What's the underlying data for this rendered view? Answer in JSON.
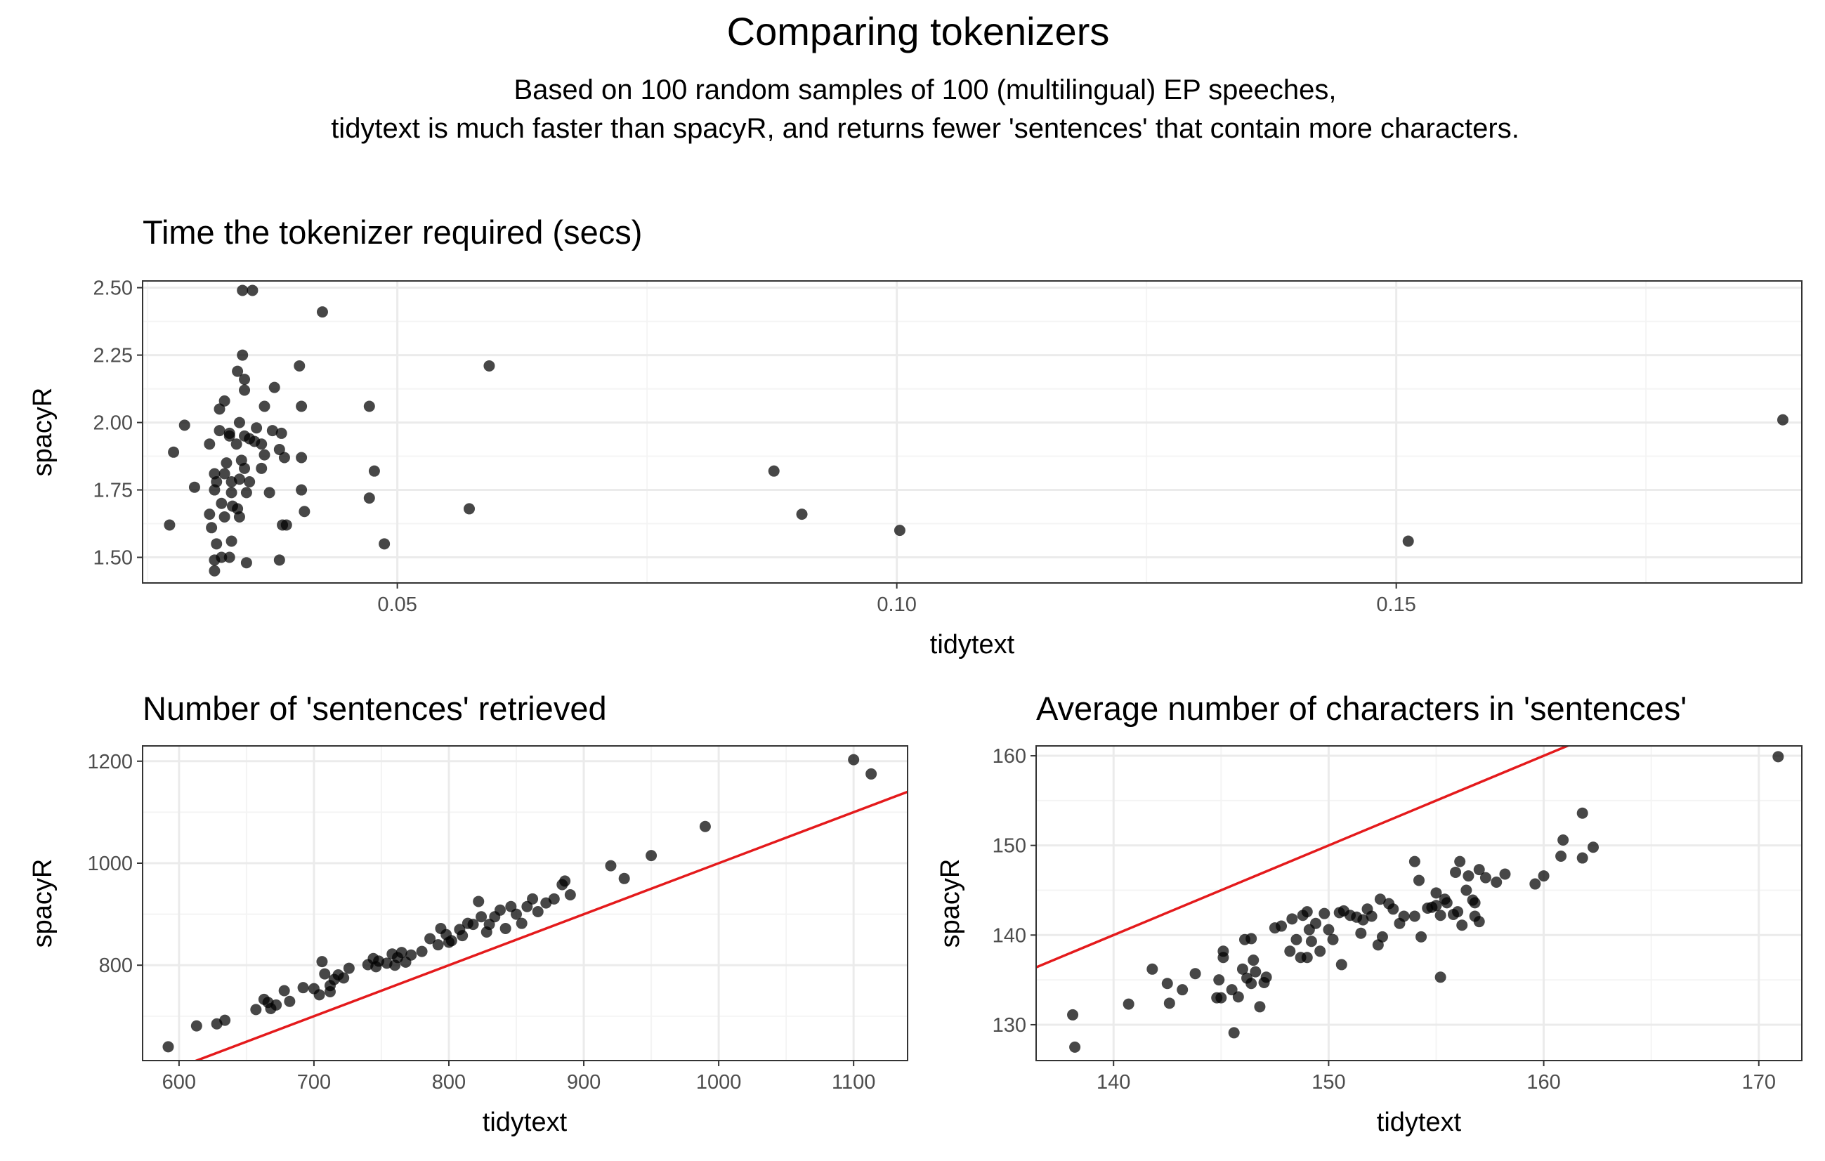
{
  "figure": {
    "title": "Comparing tokenizers",
    "subtitle_line1": "Based on 100 random samples of 100 (multilingual) EP speeches,",
    "subtitle_line2": "tidytext is much faster than spacyR, and returns fewer 'sentences' that contain more characters."
  },
  "colors": {
    "points": "#000000",
    "reference_line": "#e41a1c",
    "grid_major": "#ebebeb",
    "grid_minor": "#f4f4f4",
    "panel_border": "#333333"
  },
  "chart_data": [
    {
      "type": "scatter",
      "title": "Time the tokenizer required (secs)",
      "xlabel": "tidytext",
      "ylabel": "spacyR",
      "xlim": [
        0.0245,
        0.1906
      ],
      "ylim": [
        1.405,
        2.525
      ],
      "xticks": [
        0.05,
        0.1,
        0.15
      ],
      "xtick_labels": [
        "0.05",
        "0.10",
        "0.15"
      ],
      "yticks": [
        1.5,
        1.75,
        2.0,
        2.25,
        2.5
      ],
      "ytick_labels": [
        "1.50",
        "1.75",
        "2.00",
        "2.25",
        "2.50"
      ],
      "reference_line": null,
      "points": [
        [
          0.0355,
          2.49
        ],
        [
          0.0345,
          2.49
        ],
        [
          0.0425,
          2.41
        ],
        [
          0.0592,
          2.21
        ],
        [
          0.0402,
          2.21
        ],
        [
          0.0345,
          2.25
        ],
        [
          0.034,
          2.19
        ],
        [
          0.0347,
          2.16
        ],
        [
          0.0347,
          2.12
        ],
        [
          0.0327,
          2.08
        ],
        [
          0.0377,
          2.13
        ],
        [
          0.0367,
          2.06
        ],
        [
          0.0322,
          2.05
        ],
        [
          0.0287,
          1.99
        ],
        [
          0.0342,
          2.0
        ],
        [
          0.0359,
          1.98
        ],
        [
          0.0322,
          1.97
        ],
        [
          0.0332,
          1.96
        ],
        [
          0.0375,
          1.97
        ],
        [
          0.0384,
          1.96
        ],
        [
          0.0404,
          2.06
        ],
        [
          0.0472,
          2.06
        ],
        [
          0.0332,
          1.95
        ],
        [
          0.0347,
          1.95
        ],
        [
          0.0352,
          1.94
        ],
        [
          0.0312,
          1.92
        ],
        [
          0.0339,
          1.92
        ],
        [
          0.0357,
          1.93
        ],
        [
          0.0364,
          1.92
        ],
        [
          0.0382,
          1.9
        ],
        [
          0.0276,
          1.89
        ],
        [
          0.0367,
          1.88
        ],
        [
          0.0344,
          1.86
        ],
        [
          0.0329,
          1.85
        ],
        [
          0.0404,
          1.87
        ],
        [
          0.0387,
          1.87
        ],
        [
          0.0364,
          1.83
        ],
        [
          0.0347,
          1.83
        ],
        [
          0.0327,
          1.81
        ],
        [
          0.0317,
          1.81
        ],
        [
          0.0342,
          1.79
        ],
        [
          0.0352,
          1.78
        ],
        [
          0.0334,
          1.78
        ],
        [
          0.0319,
          1.78
        ],
        [
          0.0297,
          1.76
        ],
        [
          0.0317,
          1.75
        ],
        [
          0.0334,
          1.74
        ],
        [
          0.0349,
          1.74
        ],
        [
          0.0372,
          1.74
        ],
        [
          0.0404,
          1.75
        ],
        [
          0.0477,
          1.82
        ],
        [
          0.0472,
          1.72
        ],
        [
          0.0324,
          1.7
        ],
        [
          0.0335,
          1.69
        ],
        [
          0.034,
          1.68
        ],
        [
          0.0312,
          1.66
        ],
        [
          0.0327,
          1.65
        ],
        [
          0.0342,
          1.65
        ],
        [
          0.0407,
          1.67
        ],
        [
          0.0272,
          1.62
        ],
        [
          0.0314,
          1.61
        ],
        [
          0.0385,
          1.62
        ],
        [
          0.0389,
          1.62
        ],
        [
          0.0319,
          1.55
        ],
        [
          0.0334,
          1.56
        ],
        [
          0.0332,
          1.5
        ],
        [
          0.0317,
          1.49
        ],
        [
          0.0324,
          1.5
        ],
        [
          0.0349,
          1.48
        ],
        [
          0.0382,
          1.49
        ],
        [
          0.0317,
          1.45
        ],
        [
          0.0487,
          1.55
        ],
        [
          0.0572,
          1.68
        ],
        [
          0.0877,
          1.82
        ],
        [
          0.0905,
          1.66
        ],
        [
          0.1003,
          1.6
        ],
        [
          0.1512,
          1.56
        ],
        [
          0.1887,
          2.01
        ]
      ]
    },
    {
      "type": "scatter",
      "title": "Number of 'sentences' retrieved",
      "xlabel": "tidytext",
      "ylabel": "spacyR",
      "xlim": [
        573,
        1140
      ],
      "ylim": [
        613,
        1230
      ],
      "xticks": [
        600,
        700,
        800,
        900,
        1000,
        1100
      ],
      "xtick_labels": [
        "600",
        "700",
        "800",
        "900",
        "1000",
        "1100"
      ],
      "yticks": [
        800,
        1000,
        1200
      ],
      "ytick_labels": [
        "800",
        "1000",
        "1200"
      ],
      "reference_line": {
        "slope": 1,
        "intercept": 0
      },
      "points": [
        [
          592,
          640
        ],
        [
          613,
          681
        ],
        [
          628,
          685
        ],
        [
          634,
          692
        ],
        [
          657,
          713
        ],
        [
          663,
          733
        ],
        [
          666,
          727
        ],
        [
          668,
          715
        ],
        [
          672,
          722
        ],
        [
          678,
          750
        ],
        [
          682,
          729
        ],
        [
          692,
          756
        ],
        [
          700,
          754
        ],
        [
          704,
          742
        ],
        [
          706,
          807
        ],
        [
          708,
          783
        ],
        [
          712,
          748
        ],
        [
          712,
          760
        ],
        [
          715,
          772
        ],
        [
          718,
          781
        ],
        [
          722,
          775
        ],
        [
          726,
          794
        ],
        [
          740,
          801
        ],
        [
          744,
          813
        ],
        [
          746,
          797
        ],
        [
          748,
          808
        ],
        [
          754,
          804
        ],
        [
          758,
          822
        ],
        [
          760,
          800
        ],
        [
          762,
          815
        ],
        [
          765,
          825
        ],
        [
          768,
          806
        ],
        [
          772,
          820
        ],
        [
          780,
          827
        ],
        [
          786,
          852
        ],
        [
          792,
          840
        ],
        [
          794,
          872
        ],
        [
          798,
          860
        ],
        [
          800,
          845
        ],
        [
          802,
          848
        ],
        [
          808,
          870
        ],
        [
          810,
          858
        ],
        [
          814,
          882
        ],
        [
          818,
          880
        ],
        [
          822,
          925
        ],
        [
          824,
          895
        ],
        [
          828,
          865
        ],
        [
          830,
          880
        ],
        [
          834,
          895
        ],
        [
          838,
          908
        ],
        [
          842,
          872
        ],
        [
          846,
          915
        ],
        [
          850,
          900
        ],
        [
          854,
          882
        ],
        [
          858,
          915
        ],
        [
          862,
          930
        ],
        [
          866,
          905
        ],
        [
          872,
          922
        ],
        [
          878,
          930
        ],
        [
          884,
          958
        ],
        [
          886,
          965
        ],
        [
          890,
          938
        ],
        [
          920,
          995
        ],
        [
          930,
          970
        ],
        [
          950,
          1015
        ],
        [
          990,
          1072
        ],
        [
          1100,
          1203
        ],
        [
          1113,
          1175
        ]
      ]
    },
    {
      "type": "scatter",
      "title": "Average number of characters in 'sentences'",
      "xlabel": "tidytext",
      "ylabel": "spacyR",
      "xlim": [
        136.4,
        172.0
      ],
      "ylim": [
        126.0,
        161.1
      ],
      "xticks": [
        140,
        150,
        160,
        170
      ],
      "xtick_labels": [
        "140",
        "150",
        "160",
        "170"
      ],
      "yticks": [
        130,
        140,
        150,
        160
      ],
      "ytick_labels": [
        "130",
        "140",
        "150",
        "160"
      ],
      "reference_line": {
        "slope": 1,
        "intercept": 0
      },
      "points": [
        [
          138.1,
          131.1
        ],
        [
          138.2,
          127.5
        ],
        [
          140.7,
          132.3
        ],
        [
          141.8,
          136.2
        ],
        [
          142.5,
          134.6
        ],
        [
          142.6,
          132.4
        ],
        [
          143.2,
          133.9
        ],
        [
          143.8,
          135.7
        ],
        [
          144.8,
          133
        ],
        [
          144.9,
          135
        ],
        [
          145,
          133
        ],
        [
          145.1,
          137.5
        ],
        [
          145.1,
          138.2
        ],
        [
          145.5,
          133.9
        ],
        [
          145.6,
          129.1
        ],
        [
          145.8,
          133.1
        ],
        [
          146,
          136.2
        ],
        [
          146.1,
          139.5
        ],
        [
          146.2,
          135.2
        ],
        [
          146.4,
          134.6
        ],
        [
          146.4,
          139.6
        ],
        [
          146.5,
          137.2
        ],
        [
          146.6,
          135.9
        ],
        [
          146.8,
          132
        ],
        [
          147,
          134.7
        ],
        [
          147.1,
          135.3
        ],
        [
          147.5,
          140.8
        ],
        [
          147.8,
          141
        ],
        [
          148.2,
          138.2
        ],
        [
          148.3,
          141.8
        ],
        [
          148.5,
          139.5
        ],
        [
          148.7,
          137.5
        ],
        [
          148.8,
          142.2
        ],
        [
          149,
          137.5
        ],
        [
          149,
          142.6
        ],
        [
          149.1,
          140.6
        ],
        [
          149.2,
          139.3
        ],
        [
          149.4,
          141.3
        ],
        [
          149.6,
          138.2
        ],
        [
          149.8,
          142.4
        ],
        [
          150,
          140.6
        ],
        [
          150.2,
          139.5
        ],
        [
          150.5,
          142.5
        ],
        [
          150.6,
          136.7
        ],
        [
          150.7,
          142.7
        ],
        [
          151,
          142.2
        ],
        [
          151.3,
          142
        ],
        [
          151.5,
          140.2
        ],
        [
          151.6,
          141.7
        ],
        [
          151.8,
          142.9
        ],
        [
          152,
          142.1
        ],
        [
          152.3,
          138.9
        ],
        [
          152.4,
          144
        ],
        [
          152.5,
          139.8
        ],
        [
          152.8,
          143.5
        ],
        [
          153,
          142.9
        ],
        [
          153.3,
          141.3
        ],
        [
          153.5,
          142.1
        ],
        [
          154,
          142.1
        ],
        [
          154,
          148.2
        ],
        [
          154.2,
          146.1
        ],
        [
          154.3,
          139.8
        ],
        [
          154.6,
          143
        ],
        [
          154.8,
          143.1
        ],
        [
          155,
          143.3
        ],
        [
          155,
          144.7
        ],
        [
          155.2,
          135.3
        ],
        [
          155.2,
          142.2
        ],
        [
          155.4,
          144
        ],
        [
          155.5,
          143.6
        ],
        [
          155.8,
          142.3
        ],
        [
          155.9,
          147
        ],
        [
          156,
          142.6
        ],
        [
          156.1,
          148.2
        ],
        [
          156.2,
          141.1
        ],
        [
          156.4,
          145
        ],
        [
          156.5,
          146.6
        ],
        [
          156.7,
          143.9
        ],
        [
          156.8,
          143.6
        ],
        [
          156.8,
          142.1
        ],
        [
          157,
          147.3
        ],
        [
          157,
          141.5
        ],
        [
          157.3,
          146.4
        ],
        [
          157.8,
          145.9
        ],
        [
          158.2,
          146.8
        ],
        [
          159.6,
          145.7
        ],
        [
          160,
          146.6
        ],
        [
          160.8,
          148.8
        ],
        [
          160.9,
          150.6
        ],
        [
          161.8,
          148.6
        ],
        [
          161.8,
          153.6
        ],
        [
          162.3,
          149.8
        ],
        [
          170.9,
          159.9
        ]
      ]
    }
  ]
}
